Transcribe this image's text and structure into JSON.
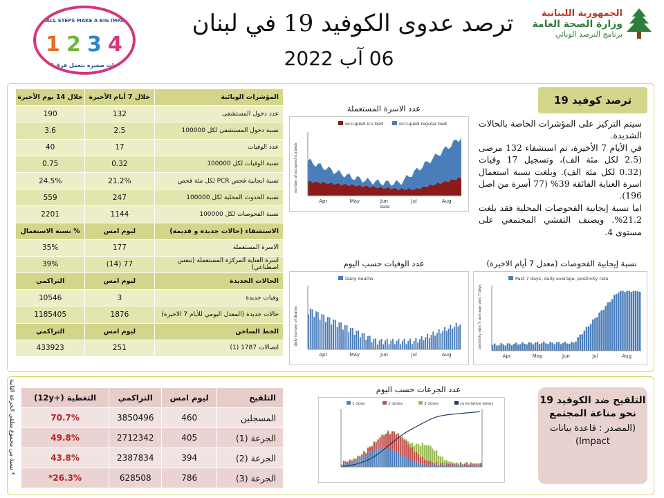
{
  "header": {
    "title": "ترصد عدوى الكوفيد 19 في لبنان",
    "date": "06 آب 2022",
    "org_line1": "الجمهورية اللبنانية",
    "org_line2": "وزارة الصحة العامة",
    "org_line3": "برنامج الترصد الوبائي",
    "campaign_en": "SMALL STEPS MAKE A BIG IMPACT",
    "campaign_ar": "خطوات صغيرة بتعمل فرق كبير",
    "campaign_nums": [
      "1",
      "2",
      "3",
      "4"
    ]
  },
  "indicators": {
    "head1": [
      "المؤشرات الوبائية",
      "خلال 7 أيام الأخيرة",
      "خلال 14 يوم الأخيرة"
    ],
    "rows1": [
      [
        "عدد دخول المستشفى",
        "132",
        "190"
      ],
      [
        "نسبة دخول المستشفى لكل 100000",
        "2.5",
        "3.6"
      ],
      [
        "عدد الوفيات",
        "17",
        "40"
      ],
      [
        "نسبة الوفيات لكل 100000",
        "0.32",
        "0.75"
      ],
      [
        "نسبة ايجابية فحص PCR لكل مئة فحص",
        "21.2%",
        "24.5%"
      ],
      [
        "نسبة الحدوث المحلية لكل 100000",
        "247",
        "559"
      ],
      [
        "نسبة الفحوصات لكل 100000",
        "1144",
        "2201"
      ]
    ],
    "head2": [
      "الاستشفاء (حالات جديدة و قديمة)",
      "ليوم امس",
      "% نسبة الاستعمال"
    ],
    "rows2": [
      [
        "الاسرة المستعملة",
        "177",
        "35%"
      ],
      [
        "اسرة العناية المركزة المستعملة (تنفس اصطناعي)",
        "77 (14)",
        "39%"
      ]
    ],
    "head3": [
      "الحالات الجديدة",
      "ليوم امس",
      "التراكمي"
    ],
    "rows3": [
      [
        "وفيات جديدة",
        "3",
        "10546"
      ],
      [
        "حالات جديدة (المعدل اليومي للأيام 7 الاخيرة)",
        "1876",
        "1185405"
      ]
    ],
    "head4": [
      "الخط الساخن",
      "ليوم امس",
      "التراكمي"
    ],
    "rows4": [
      [
        "اتصالات 1787 (1)",
        "251",
        "433923"
      ]
    ]
  },
  "info": {
    "head": "ترصد كوفيد 19",
    "p1": "سيتم التركيز على المؤشرات الخاصة بالحالات الشديدة.",
    "p2": "في الأيام 7 الأخيرة، تم استشفاء 132 مرضى (2.5 لكل مئة الف)، وتسجيل 17 وفيات (0.32 لكل مئة الف). وبلغت نسبة استعمال اسرة العناية الفائقة 39% (77 أسرة من اصل 196).",
    "p3": "اما نسبة إيجابية الفحوصات المحلية فقد بلغت 21.2%. ويصنف التفشي المجتمعي على مستوى 4."
  },
  "charts": {
    "beds": {
      "title": "عدد الاسرة المستعملة",
      "legend": [
        "occupied icu bed",
        "occupied regular bed"
      ],
      "ylabel": "number of occupied icu beds",
      "xlabel": "date",
      "months": [
        "Apr",
        "May",
        "Jun",
        "Jul",
        "Aug"
      ],
      "colors": [
        "#8b1a1a",
        "#4a7ebb"
      ]
    },
    "deaths": {
      "title": "عدد الوفيات حسب اليوم",
      "legend": [
        "Daily deaths"
      ],
      "ylabel": "daily number of deaths",
      "months": [
        "Apr",
        "May",
        "Jun",
        "Jul",
        "Aug"
      ],
      "color": "#4a7ebb"
    },
    "positivity": {
      "title": "نسبة إيجابية الفحوصات (معدل 7 أيام الاخيرة)",
      "legend": [
        "Past 7 days, daily average, positivity rate"
      ],
      "ylabel": "positivity rate % average past 7 days",
      "months": [
        "Apr",
        "May",
        "Jun",
        "Jul",
        "Aug"
      ],
      "color": "#4a7ebb"
    },
    "doses": {
      "title": "عدد الجرعات حسب اليوم",
      "legend": [
        "1 dose",
        "2 doses",
        "3 doses",
        "cumulative doses"
      ],
      "colors": [
        "#4a7ebb",
        "#c0504d",
        "#9bbb59",
        "#1f3864"
      ]
    }
  },
  "vaccination": {
    "head": [
      "التلقيح",
      "ليوم امس",
      "التراكمي",
      "التغطية (+12y)"
    ],
    "rows": [
      [
        "المسجلين",
        "460",
        "3850496",
        "70.7%"
      ],
      [
        "الجرعة (1)",
        "405",
        "2712342",
        "49.8%"
      ],
      [
        "الجرعة (2)",
        "394",
        "2387834",
        "43.8%"
      ],
      [
        "الجرعة (3)",
        "786",
        "628508",
        "26.3%*"
      ]
    ],
    "note": "* نسبة من مجموع متلقي الجرعة الثانية",
    "box_line1": "التلقيح ضد الكوفيد 19 نحو مناعة المجتمع",
    "box_line2": "(المصدر : قاعدة بيانات Impact)"
  }
}
